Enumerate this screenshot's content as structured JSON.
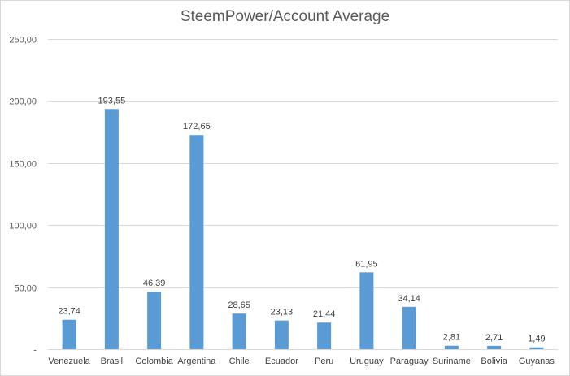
{
  "chart_data": {
    "type": "bar",
    "title": "SteemPower/Account Average",
    "xlabel": "",
    "ylabel": "",
    "categories": [
      "Venezuela",
      "Brasil",
      "Colombia",
      "Argentina",
      "Chile",
      "Ecuador",
      "Peru",
      "Uruguay",
      "Paraguay",
      "Suriname",
      "Bolivia",
      "Guyanas"
    ],
    "values": [
      23.74,
      193.55,
      46.39,
      172.65,
      28.65,
      23.13,
      21.44,
      61.95,
      34.14,
      2.81,
      2.71,
      1.49
    ],
    "data_labels": [
      "23,74",
      "193,55",
      "46,39",
      "172,65",
      "28,65",
      "23,13",
      "21,44",
      "61,95",
      "34,14",
      "2,81",
      "2,71",
      "1,49"
    ],
    "y_ticks": [
      0,
      50,
      100,
      150,
      200,
      250
    ],
    "y_tick_labels": [
      "-",
      "50,00",
      "100,00",
      "150,00",
      "200,00",
      "250,00"
    ],
    "ylim": [
      0,
      250
    ],
    "grid": true,
    "legend": "none",
    "bar_color": "#5b9bd5",
    "grid_color": "#d9d9d9"
  }
}
